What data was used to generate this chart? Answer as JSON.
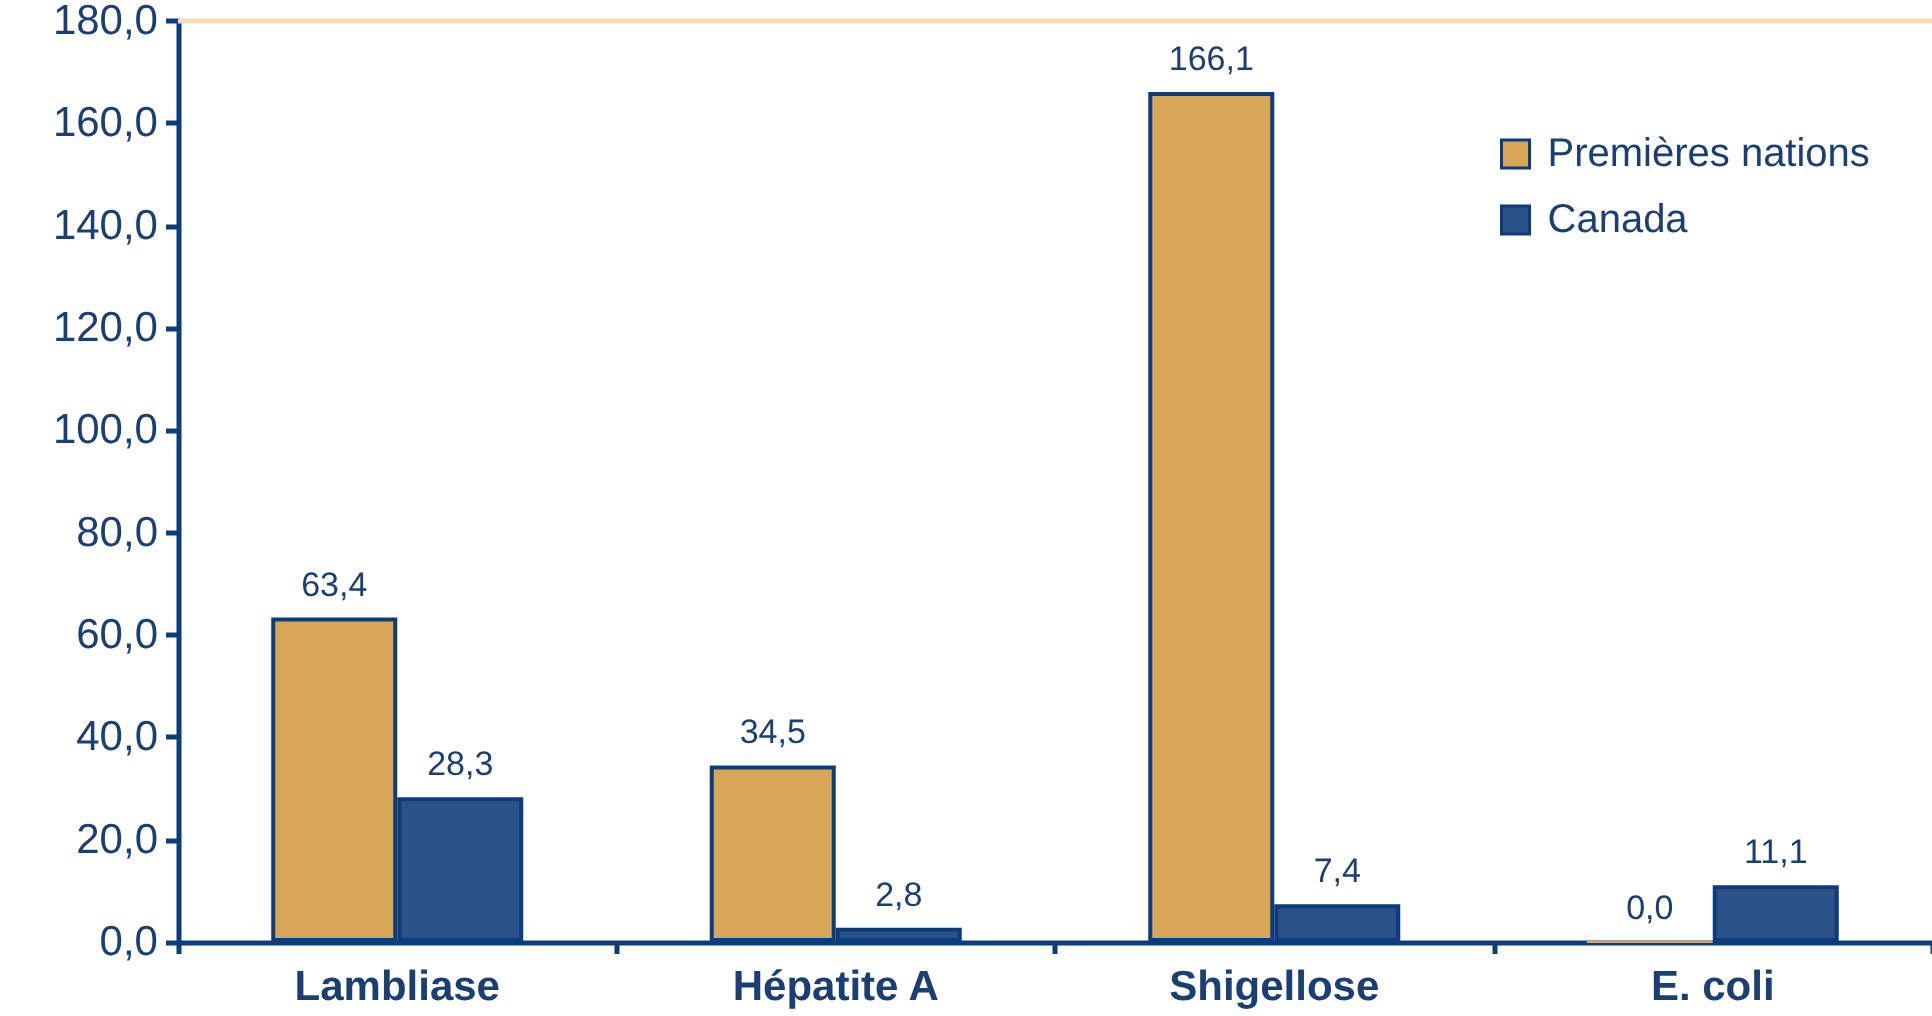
{
  "chart_data": {
    "type": "bar",
    "categories": [
      "Lambliase",
      "Hépatite A",
      "Shigellose",
      "E. coli"
    ],
    "series": [
      {
        "name": "Premières nations",
        "color": "#d8a657",
        "values": [
          63.4,
          34.5,
          166.1,
          0.0
        ],
        "value_labels": [
          "63,4",
          "34,5",
          "166,1",
          "0,0"
        ]
      },
      {
        "name": "Canada",
        "color": "#2b5189",
        "values": [
          28.3,
          2.8,
          7.4,
          11.1
        ],
        "value_labels": [
          "28,3",
          "2,8",
          "7,4",
          "11,1"
        ]
      }
    ],
    "ylim": [
      0,
      180
    ],
    "yticks": [
      {
        "value": 0,
        "label": "0,0"
      },
      {
        "value": 20,
        "label": "20,0"
      },
      {
        "value": 40,
        "label": "40,0"
      },
      {
        "value": 60,
        "label": "60,0"
      },
      {
        "value": 80,
        "label": "80,0"
      },
      {
        "value": 100,
        "label": "100,0"
      },
      {
        "value": 120,
        "label": "120,0"
      },
      {
        "value": 140,
        "label": "140,0"
      },
      {
        "value": 160,
        "label": "160,0"
      },
      {
        "value": 180,
        "label": "180,0"
      }
    ],
    "ref_lines": [
      {
        "axis": "y",
        "value": 180,
        "color": "#f7dcbc"
      }
    ],
    "legend": "top right"
  }
}
